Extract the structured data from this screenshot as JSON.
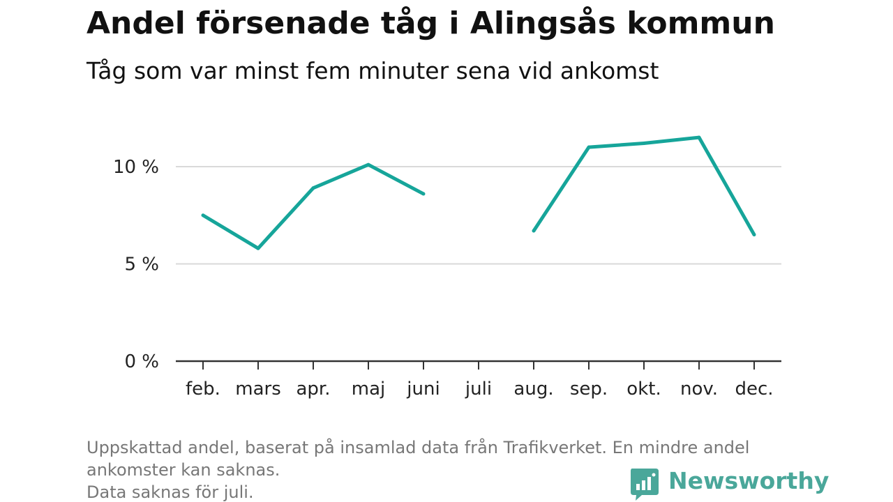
{
  "title": "Andel försenade tåg i Alingsås kommun",
  "subtitle": "Tåg som var minst fem minuter sena vid ankomst",
  "notes": [
    "Uppskattad andel, baserat på insamlad data från Trafikverket. En mindre andel",
    "ankomster kan saknas.",
    "Data saknas för juli."
  ],
  "logo": {
    "text": "Newsworthy",
    "icon": "chart-bubble-icon",
    "color": "#4aa79a"
  },
  "chart_data": {
    "type": "line",
    "categories": [
      "feb.",
      "mars",
      "apr.",
      "maj",
      "juni",
      "juli",
      "aug.",
      "sep.",
      "okt.",
      "nov.",
      "dec."
    ],
    "series": [
      {
        "values": [
          7.5,
          5.8,
          8.9,
          10.1,
          8.6,
          null,
          6.7,
          11.0,
          11.2,
          11.5,
          6.5
        ],
        "color": "#16a59a"
      }
    ],
    "yticks": [
      0,
      5,
      10
    ],
    "ytick_labels": [
      "0 %",
      "5 %",
      "10 %"
    ],
    "ylim": [
      0,
      12.5
    ],
    "grid": true,
    "xlabel": "",
    "ylabel": ""
  }
}
